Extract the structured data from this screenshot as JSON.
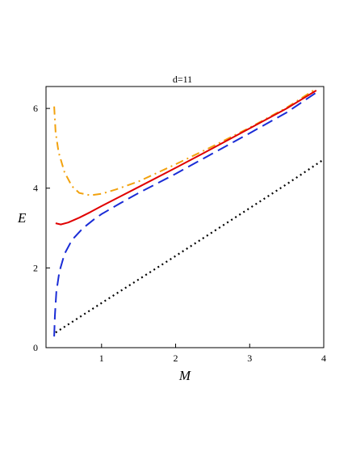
{
  "chart_data": {
    "type": "line",
    "title": "d=11",
    "xlabel": "M",
    "ylabel": "E",
    "xlim": [
      0.25,
      4.0
    ],
    "ylim": [
      0,
      6.55
    ],
    "x_ticks": [
      1,
      2,
      3,
      4
    ],
    "y_ticks": [
      0,
      2,
      4,
      6
    ],
    "grid": false,
    "legend": "none",
    "series": [
      {
        "style": "dash-dot",
        "color": "#f2a20e",
        "points": [
          [
            0.36,
            6.05
          ],
          [
            0.38,
            5.4
          ],
          [
            0.42,
            4.9
          ],
          [
            0.5,
            4.4
          ],
          [
            0.6,
            4.05
          ],
          [
            0.7,
            3.88
          ],
          [
            0.85,
            3.82
          ],
          [
            1.0,
            3.86
          ],
          [
            1.2,
            3.97
          ],
          [
            1.5,
            4.17
          ],
          [
            2.0,
            4.6
          ],
          [
            2.5,
            5.05
          ],
          [
            3.0,
            5.52
          ],
          [
            3.5,
            6.02
          ],
          [
            3.9,
            6.5
          ]
        ]
      },
      {
        "style": "solid",
        "color": "#e00000",
        "points": [
          [
            0.38,
            3.12
          ],
          [
            0.45,
            3.09
          ],
          [
            0.55,
            3.14
          ],
          [
            0.7,
            3.26
          ],
          [
            0.85,
            3.4
          ],
          [
            1.0,
            3.55
          ],
          [
            1.25,
            3.79
          ],
          [
            1.5,
            4.03
          ],
          [
            2.0,
            4.51
          ],
          [
            2.5,
            5.0
          ],
          [
            3.0,
            5.5
          ],
          [
            3.5,
            6.0
          ],
          [
            3.9,
            6.45
          ]
        ]
      },
      {
        "style": "dashed",
        "color": "#1a2cd6",
        "points": [
          [
            0.36,
            0.28
          ],
          [
            0.37,
            0.8
          ],
          [
            0.39,
            1.4
          ],
          [
            0.43,
            1.9
          ],
          [
            0.5,
            2.35
          ],
          [
            0.6,
            2.7
          ],
          [
            0.75,
            3.0
          ],
          [
            0.9,
            3.22
          ],
          [
            1.0,
            3.35
          ],
          [
            1.25,
            3.62
          ],
          [
            1.5,
            3.88
          ],
          [
            2.0,
            4.36
          ],
          [
            2.5,
            4.87
          ],
          [
            3.0,
            5.38
          ],
          [
            3.5,
            5.9
          ],
          [
            3.9,
            6.4
          ]
        ]
      },
      {
        "style": "dotted",
        "color": "#000000",
        "points": [
          [
            0.38,
            0.38
          ],
          [
            1.0,
            1.12
          ],
          [
            1.5,
            1.71
          ],
          [
            2.0,
            2.3
          ],
          [
            2.5,
            2.9
          ],
          [
            3.0,
            3.5
          ],
          [
            3.5,
            4.1
          ],
          [
            4.0,
            4.72
          ]
        ]
      }
    ]
  }
}
